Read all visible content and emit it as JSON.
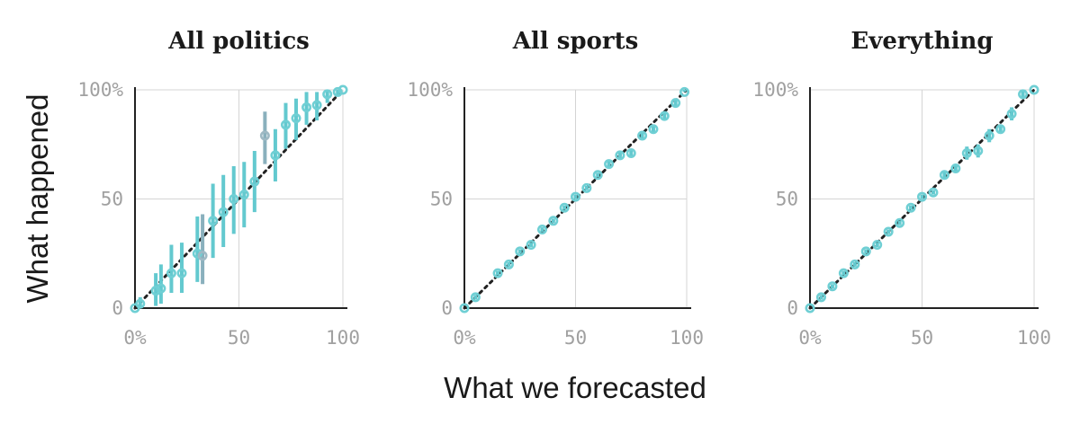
{
  "ylabel": "What happened",
  "xlabel": "What we forecasted",
  "colors": {
    "point": "#6fcfd4",
    "point_muted": "#9fb9c4",
    "error_bar": "#63c9cf",
    "error_bar_muted": "#8ab0bd",
    "axis": "#222222",
    "grid": "#d4d4d4",
    "tick_text": "#a0a0a0"
  },
  "chart_data": [
    {
      "type": "scatter",
      "title": "All politics",
      "xlim": [
        0,
        100
      ],
      "ylim": [
        0,
        100
      ],
      "x_ticks": [
        "0%",
        "50",
        "100"
      ],
      "y_ticks": [
        "0",
        "50",
        "100%"
      ],
      "reference_line": "y = x (dotted)",
      "grid": true,
      "series": [
        {
          "x": [
            0,
            2.5,
            10,
            12.5,
            17.5,
            22.5,
            30,
            32.5,
            37.5,
            42.5,
            47.5,
            52.5,
            57.5,
            62.5,
            67.5,
            72.5,
            77.5,
            82.5,
            87.5,
            92.5,
            97.5,
            100
          ],
          "y": [
            0,
            2,
            8,
            9,
            16,
            16,
            25,
            24,
            40,
            44,
            50,
            52,
            58,
            79,
            70,
            84,
            87,
            92,
            93,
            98,
            99,
            100
          ],
          "y_low": [
            0,
            0,
            1,
            2,
            7,
            7,
            12,
            11,
            23,
            28,
            34,
            37,
            44,
            66,
            58,
            73,
            77,
            84,
            86,
            94,
            97,
            100
          ],
          "y_high": [
            0,
            5,
            16,
            20,
            29,
            30,
            42,
            43,
            57,
            61,
            65,
            67,
            72,
            90,
            82,
            94,
            96,
            99,
            99,
            100,
            100,
            100
          ],
          "muted": [
            false,
            false,
            false,
            false,
            false,
            false,
            false,
            true,
            false,
            false,
            false,
            false,
            false,
            true,
            false,
            false,
            false,
            false,
            false,
            false,
            false,
            false
          ]
        }
      ]
    },
    {
      "type": "scatter",
      "title": "All sports",
      "xlim": [
        0,
        100
      ],
      "ylim": [
        0,
        100
      ],
      "x_ticks": [
        "0%",
        "50",
        "100"
      ],
      "y_ticks": [
        "0",
        "50",
        "100%"
      ],
      "reference_line": "y = x (dotted)",
      "grid": true,
      "series": [
        {
          "x": [
            0,
            5,
            15,
            20,
            25,
            30,
            35,
            40,
            45,
            50,
            55,
            60,
            65,
            70,
            75,
            80,
            85,
            90,
            95,
            99
          ],
          "y": [
            0,
            5,
            16,
            20,
            26,
            29,
            36,
            40,
            46,
            51,
            55,
            61,
            66,
            70,
            71,
            79,
            82,
            88,
            94,
            99
          ],
          "y_low": [
            0,
            4,
            15,
            19,
            25,
            28,
            35,
            39,
            45,
            50,
            54,
            60,
            64,
            68,
            69,
            77,
            80,
            86,
            92,
            99
          ],
          "y_high": [
            0,
            6,
            17,
            21,
            27,
            30,
            37,
            41,
            47,
            52,
            56,
            62,
            68,
            72,
            73,
            81,
            84,
            90,
            96,
            100
          ],
          "muted": []
        }
      ]
    },
    {
      "type": "scatter",
      "title": "Everything",
      "xlim": [
        0,
        100
      ],
      "ylim": [
        0,
        100
      ],
      "x_ticks": [
        "0%",
        "50",
        "100"
      ],
      "y_ticks": [
        "0",
        "50",
        "100%"
      ],
      "reference_line": "y = x (dotted)",
      "grid": true,
      "series": [
        {
          "x": [
            0,
            5,
            10,
            15,
            20,
            25,
            30,
            35,
            40,
            45,
            50,
            55,
            60,
            65,
            70,
            75,
            80,
            85,
            90,
            95,
            100
          ],
          "y": [
            0,
            5,
            10,
            16,
            20,
            26,
            29,
            35,
            39,
            46,
            51,
            53,
            61,
            64,
            71,
            72,
            79,
            82,
            89,
            98,
            100
          ],
          "y_low": [
            0,
            4,
            9,
            15,
            19,
            25,
            28,
            34,
            38,
            45,
            50,
            52,
            59,
            62,
            68,
            69,
            76,
            80,
            86,
            96,
            100
          ],
          "y_high": [
            0,
            6,
            11,
            17,
            21,
            27,
            30,
            36,
            40,
            47,
            52,
            54,
            63,
            66,
            74,
            75,
            82,
            84,
            92,
            100,
            100
          ],
          "muted": []
        }
      ]
    }
  ]
}
